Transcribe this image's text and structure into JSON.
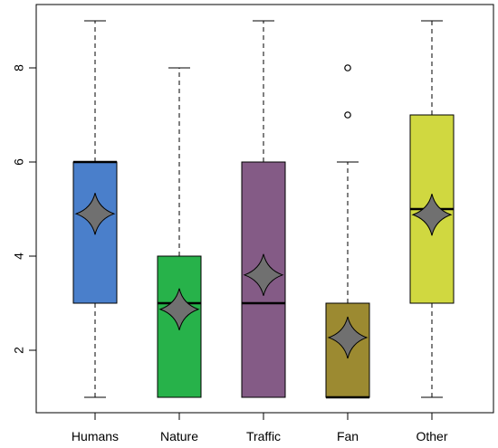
{
  "chart_data": {
    "type": "boxplot",
    "title": "",
    "xlabel": "",
    "ylabel": "",
    "ylim": [
      0.68,
      9.32
    ],
    "yticks": [
      2,
      4,
      6,
      8
    ],
    "ytick_labels": [
      "2",
      "4",
      "6",
      "8"
    ],
    "grid": false,
    "categories": [
      "Humans",
      "Nature",
      "Traffic",
      "Fan",
      "Other"
    ],
    "boxes": [
      {
        "label": "Humans",
        "color": "#4a7fcb",
        "whisker_low": 1,
        "q1": 3,
        "median": 6,
        "q3": 6,
        "whisker_high": 9,
        "mean": 4.9,
        "outliers": []
      },
      {
        "label": "Nature",
        "color": "#27b24a",
        "whisker_low": 1,
        "q1": 1,
        "median": 3,
        "q3": 4,
        "whisker_high": 8,
        "mean": 2.87,
        "outliers": []
      },
      {
        "label": "Traffic",
        "color": "#845b86",
        "whisker_low": 1,
        "q1": 1,
        "median": 3,
        "q3": 6,
        "whisker_high": 9,
        "mean": 3.6,
        "outliers": []
      },
      {
        "label": "Fan",
        "color": "#9c8a31",
        "whisker_low": 1,
        "q1": 1,
        "median": 1,
        "q3": 3,
        "whisker_high": 6,
        "mean": 2.27,
        "outliers": [
          7,
          8
        ]
      },
      {
        "label": "Other",
        "color": "#d0d840",
        "whisker_low": 1,
        "q1": 3,
        "median": 5,
        "q3": 7,
        "whisker_high": 9,
        "mean": 4.88,
        "outliers": []
      }
    ],
    "mean_marker_color": "#707070"
  }
}
